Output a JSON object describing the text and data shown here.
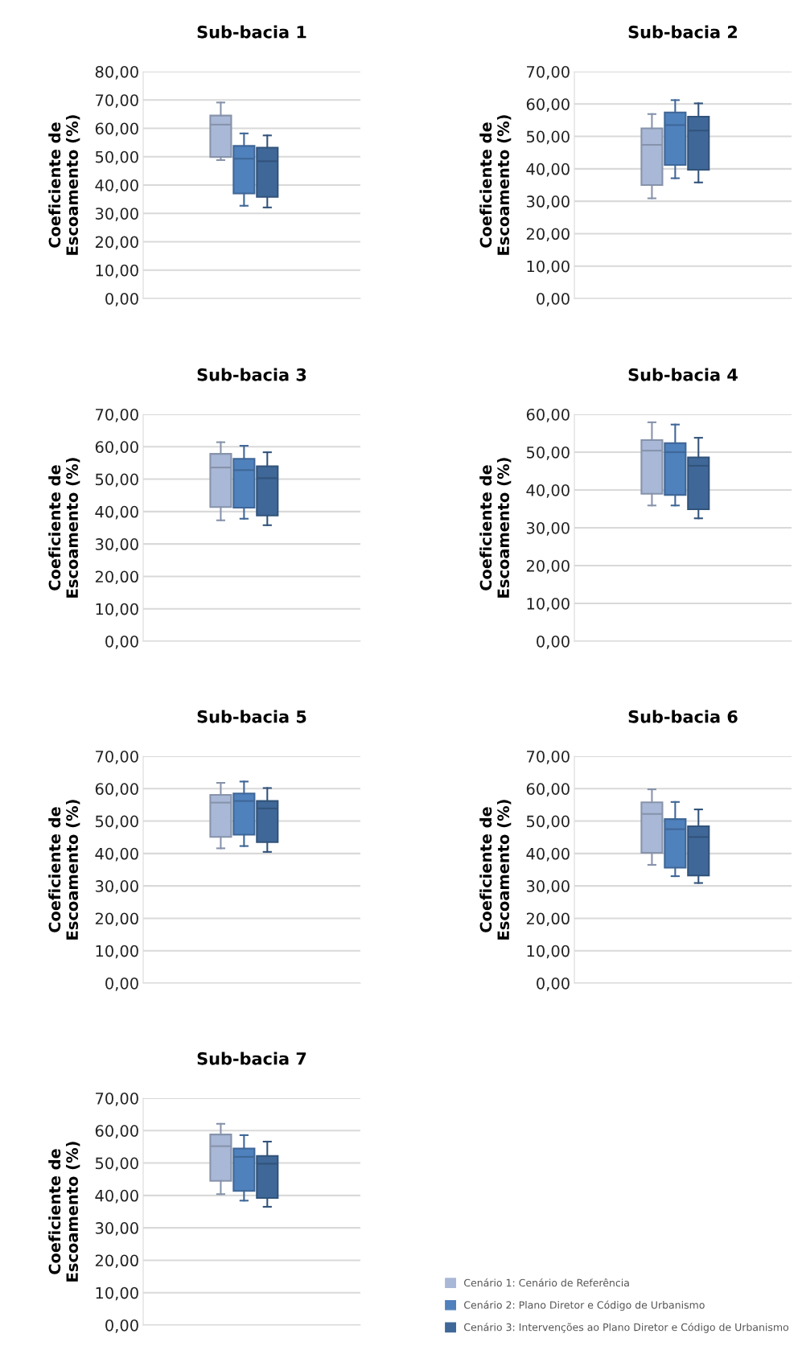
{
  "chart_data": [
    {
      "type": "box",
      "title": "Sub-bacia 1",
      "ylabel": "Coeficiente de\nEscoamento (%)",
      "categories": [
        null
      ],
      "ylim": [
        0,
        80
      ],
      "yticks": [
        {
          "value": 0,
          "label": "0,00"
        },
        {
          "value": 10,
          "label": "10,00"
        },
        {
          "value": 20,
          "label": "20,00"
        },
        {
          "value": 30,
          "label": "30,00"
        },
        {
          "value": 40,
          "label": "40,00"
        },
        {
          "value": 50,
          "label": "50,00"
        },
        {
          "value": 60,
          "label": "60,00"
        },
        {
          "value": 70,
          "label": "70,00"
        },
        {
          "value": 80,
          "label": "80,00"
        }
      ],
      "grid": "y",
      "series": [
        {
          "color": "#a9b8d6",
          "boxes": [
            {
              "low": 48.8,
              "q1": 49.9,
              "median": 61.3,
              "q3": 64.5,
              "high": 69.1
            }
          ]
        },
        {
          "color": "#4f81bd",
          "boxes": [
            {
              "low": 32.7,
              "q1": 37.0,
              "median": 49.3,
              "q3": 53.8,
              "high": 58.2
            }
          ]
        },
        {
          "color": "#3f6899",
          "boxes": [
            {
              "low": 32.1,
              "q1": 35.8,
              "median": 48.4,
              "q3": 53.2,
              "high": 57.5
            }
          ]
        }
      ]
    },
    {
      "type": "box",
      "title": "Sub-bacia 2",
      "ylabel": "Coeficiente de\nEscoamento (%)",
      "categories": [
        null
      ],
      "ylim": [
        0,
        70
      ],
      "yticks": [
        {
          "value": 0,
          "label": "0,00"
        },
        {
          "value": 10,
          "label": "10,00"
        },
        {
          "value": 20,
          "label": "20,00"
        },
        {
          "value": 30,
          "label": "30,00"
        },
        {
          "value": 40,
          "label": "40,00"
        },
        {
          "value": 50,
          "label": "50,00"
        },
        {
          "value": 60,
          "label": "60,00"
        },
        {
          "value": 70,
          "label": "70,00"
        }
      ],
      "grid": "y",
      "series": [
        {
          "color": "#a9b8d6",
          "boxes": [
            {
              "low": 30.9,
              "q1": 35.0,
              "median": 47.4,
              "q3": 52.5,
              "high": 56.9
            }
          ]
        },
        {
          "color": "#4f81bd",
          "boxes": [
            {
              "low": 37.1,
              "q1": 41.2,
              "median": 53.5,
              "q3": 57.4,
              "high": 61.2
            }
          ]
        },
        {
          "color": "#3f6899",
          "boxes": [
            {
              "low": 35.8,
              "q1": 39.7,
              "median": 51.8,
              "q3": 56.1,
              "high": 60.2
            }
          ]
        }
      ]
    },
    {
      "type": "box",
      "title": "Sub-bacia 3",
      "ylabel": "Coeficiente de\nEscoamento (%)",
      "categories": [
        null
      ],
      "ylim": [
        0,
        70
      ],
      "yticks": [
        {
          "value": 0,
          "label": "0,00"
        },
        {
          "value": 10,
          "label": "10,00"
        },
        {
          "value": 20,
          "label": "20,00"
        },
        {
          "value": 30,
          "label": "30,00"
        },
        {
          "value": 40,
          "label": "40,00"
        },
        {
          "value": 50,
          "label": "50,00"
        },
        {
          "value": 60,
          "label": "60,00"
        },
        {
          "value": 70,
          "label": "70,00"
        }
      ],
      "grid": "y",
      "series": [
        {
          "color": "#a9b8d6",
          "boxes": [
            {
              "low": 37.3,
              "q1": 41.4,
              "median": 53.6,
              "q3": 57.8,
              "high": 61.4
            }
          ]
        },
        {
          "color": "#4f81bd",
          "boxes": [
            {
              "low": 37.8,
              "q1": 41.2,
              "median": 52.8,
              "q3": 56.3,
              "high": 60.3
            }
          ]
        },
        {
          "color": "#3f6899",
          "boxes": [
            {
              "low": 35.8,
              "q1": 38.8,
              "median": 50.3,
              "q3": 54.0,
              "high": 58.3
            }
          ]
        }
      ]
    },
    {
      "type": "box",
      "title": "Sub-bacia 4",
      "ylabel": "Coeficiente de\nEscoamento (%)",
      "categories": [
        null
      ],
      "ylim": [
        0,
        60
      ],
      "yticks": [
        {
          "value": 0,
          "label": "0,00"
        },
        {
          "value": 10,
          "label": "10,00"
        },
        {
          "value": 20,
          "label": "20,00"
        },
        {
          "value": 30,
          "label": "30,00"
        },
        {
          "value": 40,
          "label": "40,00"
        },
        {
          "value": 50,
          "label": "50,00"
        },
        {
          "value": 60,
          "label": "60,00"
        }
      ],
      "grid": "y",
      "series": [
        {
          "color": "#a9b8d6",
          "boxes": [
            {
              "low": 35.9,
              "q1": 39.0,
              "median": 50.4,
              "q3": 53.2,
              "high": 57.9
            }
          ]
        },
        {
          "color": "#4f81bd",
          "boxes": [
            {
              "low": 35.9,
              "q1": 38.7,
              "median": 50.0,
              "q3": 52.4,
              "high": 57.3
            }
          ]
        },
        {
          "color": "#3f6899",
          "boxes": [
            {
              "low": 32.5,
              "q1": 34.9,
              "median": 46.4,
              "q3": 48.6,
              "high": 53.8
            }
          ]
        }
      ]
    },
    {
      "type": "box",
      "title": "Sub-bacia 5",
      "ylabel": "Coeficiente de\nEscoamento (%)",
      "categories": [
        null
      ],
      "ylim": [
        0,
        70
      ],
      "yticks": [
        {
          "value": 0,
          "label": "0,00"
        },
        {
          "value": 10,
          "label": "10,00"
        },
        {
          "value": 20,
          "label": "20,00"
        },
        {
          "value": 30,
          "label": "30,00"
        },
        {
          "value": 40,
          "label": "40,00"
        },
        {
          "value": 50,
          "label": "50,00"
        },
        {
          "value": 60,
          "label": "60,00"
        },
        {
          "value": 70,
          "label": "70,00"
        }
      ],
      "grid": "y",
      "series": [
        {
          "color": "#a9b8d6",
          "boxes": [
            {
              "low": 41.6,
              "q1": 45.1,
              "median": 55.7,
              "q3": 58.1,
              "high": 61.8
            }
          ]
        },
        {
          "color": "#4f81bd",
          "boxes": [
            {
              "low": 42.3,
              "q1": 45.8,
              "median": 56.2,
              "q3": 58.5,
              "high": 62.2
            }
          ]
        },
        {
          "color": "#3f6899",
          "boxes": [
            {
              "low": 40.5,
              "q1": 43.5,
              "median": 53.9,
              "q3": 56.2,
              "high": 60.2
            }
          ]
        }
      ]
    },
    {
      "type": "box",
      "title": "Sub-bacia 6",
      "ylabel": "Coeficiente de\nEscoamento (%)",
      "categories": [
        null
      ],
      "ylim": [
        0,
        70
      ],
      "yticks": [
        {
          "value": 0,
          "label": "0,00"
        },
        {
          "value": 10,
          "label": "10,00"
        },
        {
          "value": 20,
          "label": "20,00"
        },
        {
          "value": 30,
          "label": "30,00"
        },
        {
          "value": 40,
          "label": "40,00"
        },
        {
          "value": 50,
          "label": "50,00"
        },
        {
          "value": 60,
          "label": "60,00"
        },
        {
          "value": 70,
          "label": "70,00"
        }
      ],
      "grid": "y",
      "series": [
        {
          "color": "#a9b8d6",
          "boxes": [
            {
              "low": 36.5,
              "q1": 40.2,
              "median": 52.2,
              "q3": 55.8,
              "high": 59.8
            }
          ]
        },
        {
          "color": "#4f81bd",
          "boxes": [
            {
              "low": 33.0,
              "q1": 35.6,
              "median": 47.5,
              "q3": 50.6,
              "high": 55.9
            }
          ]
        },
        {
          "color": "#3f6899",
          "boxes": [
            {
              "low": 30.9,
              "q1": 33.2,
              "median": 45.1,
              "q3": 48.4,
              "high": 53.6
            }
          ]
        }
      ]
    },
    {
      "type": "box",
      "title": "Sub-bacia 7",
      "ylabel": "Coeficiente de\nEscoamento (%)",
      "categories": [
        null
      ],
      "ylim": [
        0,
        70
      ],
      "yticks": [
        {
          "value": 0,
          "label": "0,00"
        },
        {
          "value": 10,
          "label": "10,00"
        },
        {
          "value": 20,
          "label": "20,00"
        },
        {
          "value": 30,
          "label": "30,00"
        },
        {
          "value": 40,
          "label": "40,00"
        },
        {
          "value": 50,
          "label": "50,00"
        },
        {
          "value": 60,
          "label": "60,00"
        },
        {
          "value": 70,
          "label": "70,00"
        }
      ],
      "grid": "y",
      "legend": "bottom right",
      "series": [
        {
          "name": "Cenário 1: Cenário de Referência",
          "color": "#a9b8d6",
          "boxes": [
            {
              "low": 40.4,
              "q1": 44.5,
              "median": 55.2,
              "q3": 58.8,
              "high": 62.1
            }
          ]
        },
        {
          "name": "Cenário 2: Plano Diretor e Código de Urbanismo",
          "color": "#4f81bd",
          "boxes": [
            {
              "low": 38.4,
              "q1": 41.4,
              "median": 51.9,
              "q3": 54.5,
              "high": 58.6
            }
          ]
        },
        {
          "name": "Cenário 3: Intervenções ao Plano Diretor e Código de Urbanismo",
          "color": "#3f6899",
          "boxes": [
            {
              "low": 36.5,
              "q1": 39.2,
              "median": 49.8,
              "q3": 52.2,
              "high": 56.6
            }
          ]
        }
      ]
    }
  ]
}
